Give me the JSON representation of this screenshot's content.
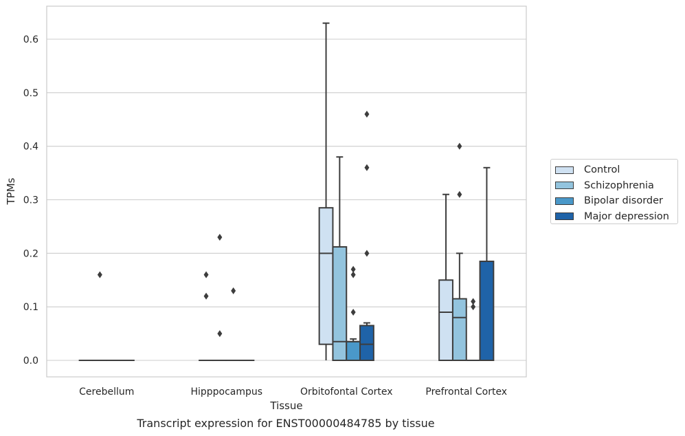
{
  "caption": "Transcript expression for ENST00000484785 by tissue",
  "chart_data": {
    "type": "boxplot",
    "title": "",
    "xlabel": "Tissue",
    "ylabel": "TPMs",
    "categories": [
      "Cerebellum",
      "Hipppocampus",
      "Orbitofontal Cortex",
      "Prefrontal Cortex"
    ],
    "ylim": [
      -0.03,
      0.66
    ],
    "yticks": [
      "0.0",
      "0.1",
      "0.2",
      "0.3",
      "0.4",
      "0.5",
      "0.6"
    ],
    "grid": true,
    "legend_position": "right",
    "series": [
      {
        "name": "Control",
        "color": "#cfe1f2",
        "boxes": [
          {
            "q1": 0.0,
            "median": 0.0,
            "q3": 0.0,
            "whisker_low": 0.0,
            "whisker_high": 0.0,
            "outliers": []
          },
          {
            "q1": 0.0,
            "median": 0.0,
            "q3": 0.0,
            "whisker_low": 0.0,
            "whisker_high": 0.0,
            "outliers": [
              0.16,
              0.12
            ]
          },
          {
            "q1": 0.03,
            "median": 0.2,
            "q3": 0.285,
            "whisker_low": 0.0,
            "whisker_high": 0.63,
            "outliers": []
          },
          {
            "q1": 0.0,
            "median": 0.09,
            "q3": 0.15,
            "whisker_low": 0.0,
            "whisker_high": 0.31,
            "outliers": []
          }
        ]
      },
      {
        "name": "Schizophrenia",
        "color": "#93c4de",
        "boxes": [
          {
            "q1": 0.0,
            "median": 0.0,
            "q3": 0.0,
            "whisker_low": 0.0,
            "whisker_high": 0.0,
            "outliers": [
              0.16
            ]
          },
          {
            "q1": 0.0,
            "median": 0.0,
            "q3": 0.0,
            "whisker_low": 0.0,
            "whisker_high": 0.0,
            "outliers": [
              0.05,
              0.23
            ]
          },
          {
            "q1": 0.0,
            "median": 0.035,
            "q3": 0.212,
            "whisker_low": 0.0,
            "whisker_high": 0.38,
            "outliers": []
          },
          {
            "q1": 0.0,
            "median": 0.08,
            "q3": 0.115,
            "whisker_low": 0.0,
            "whisker_high": 0.2,
            "outliers": [
              0.31,
              0.4
            ]
          }
        ]
      },
      {
        "name": "Bipolar disorder",
        "color": "#4a98c9",
        "boxes": [
          {
            "q1": 0.0,
            "median": 0.0,
            "q3": 0.0,
            "whisker_low": 0.0,
            "whisker_high": 0.0,
            "outliers": []
          },
          {
            "q1": 0.0,
            "median": 0.0,
            "q3": 0.0,
            "whisker_low": 0.0,
            "whisker_high": 0.0,
            "outliers": [
              0.13
            ]
          },
          {
            "q1": 0.0,
            "median": 0.035,
            "q3": 0.035,
            "whisker_low": 0.0,
            "whisker_high": 0.04,
            "outliers": [
              0.17,
              0.16,
              0.09
            ]
          },
          {
            "q1": 0.0,
            "median": 0.0,
            "q3": 0.0,
            "whisker_low": 0.0,
            "whisker_high": 0.0,
            "outliers": [
              0.11,
              0.1
            ]
          }
        ]
      },
      {
        "name": "Major depression",
        "color": "#1f63a8",
        "boxes": [
          {
            "q1": 0.0,
            "median": 0.0,
            "q3": 0.0,
            "whisker_low": 0.0,
            "whisker_high": 0.0,
            "outliers": []
          },
          {
            "q1": 0.0,
            "median": 0.0,
            "q3": 0.0,
            "whisker_low": 0.0,
            "whisker_high": 0.0,
            "outliers": []
          },
          {
            "q1": 0.0,
            "median": 0.03,
            "q3": 0.065,
            "whisker_low": 0.0,
            "whisker_high": 0.07,
            "outliers": [
              0.2,
              0.36,
              0.46
            ]
          },
          {
            "q1": 0.0,
            "median": 0.0,
            "q3": 0.185,
            "whisker_low": 0.0,
            "whisker_high": 0.36,
            "outliers": []
          }
        ]
      }
    ]
  }
}
